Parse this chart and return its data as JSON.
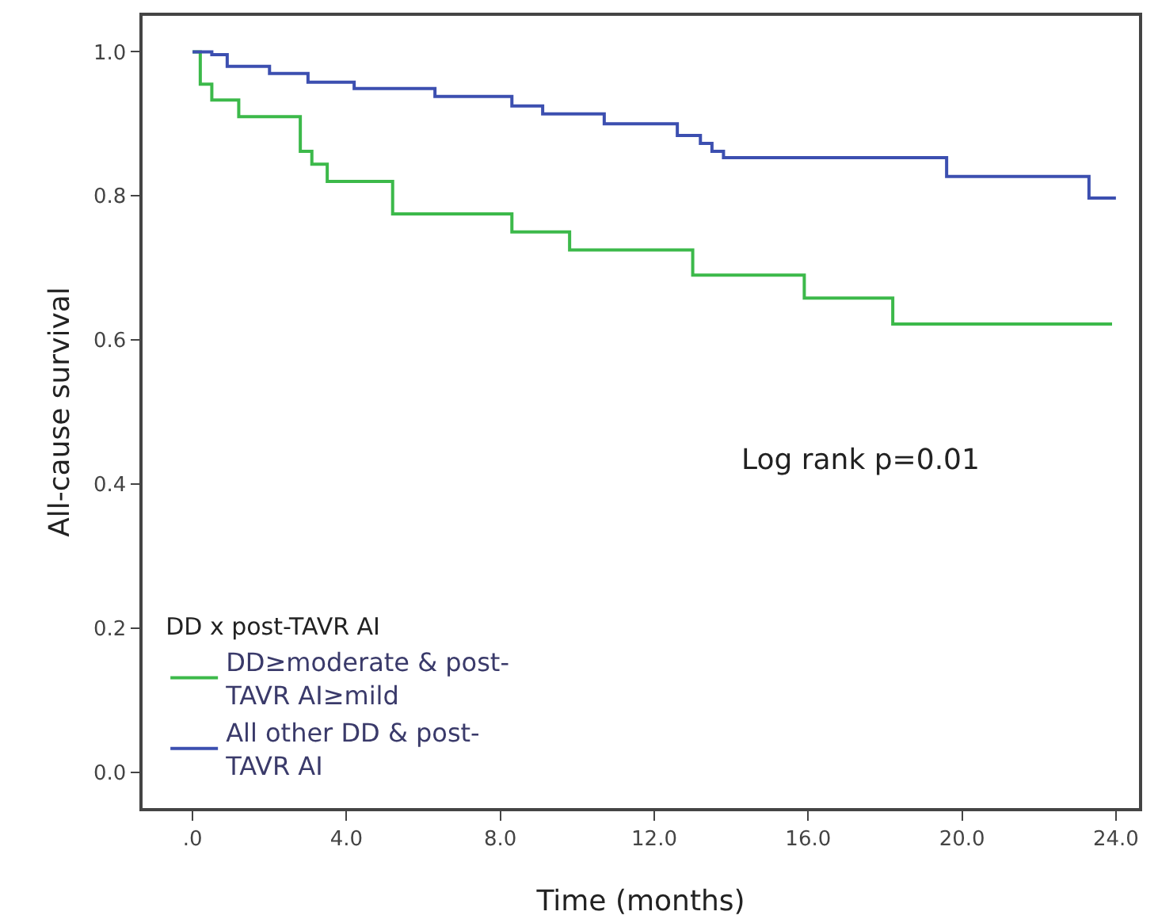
{
  "chart_data": {
    "type": "step",
    "xlabel": "Time (months)",
    "ylabel": "All-cause survival",
    "legend_title": "DD x post-TAVR AI",
    "legend": "bottom left",
    "grid": false,
    "xlim": [
      -1.3,
      24.6
    ],
    "ylim": [
      -0.05,
      1.05
    ],
    "xticks": [
      {
        "value": 0,
        "label": ".0"
      },
      {
        "value": 4,
        "label": "4.0"
      },
      {
        "value": 8,
        "label": "8.0"
      },
      {
        "value": 12,
        "label": "12.0"
      },
      {
        "value": 16,
        "label": "16.0"
      },
      {
        "value": 20,
        "label": "20.0"
      },
      {
        "value": 24,
        "label": "24.0"
      }
    ],
    "yticks": [
      {
        "value": 0,
        "label": "0.0"
      },
      {
        "value": 0.2,
        "label": "0.2"
      },
      {
        "value": 0.4,
        "label": "0.4"
      },
      {
        "value": 0.6,
        "label": "0.6"
      },
      {
        "value": 0.8,
        "label": "0.8"
      },
      {
        "value": 1,
        "label": "1.0"
      }
    ],
    "annotations": [
      "Log rank p=0.01"
    ],
    "series": [
      {
        "name": "DD≥moderate & post-TAVR AI≥mild",
        "color": "#3cb94a",
        "x": [
          0,
          0.2,
          0.5,
          1.2,
          2.8,
          3.1,
          3.5,
          5.2,
          8.3,
          9.8,
          13.0,
          15.9,
          18.2,
          23.9
        ],
        "values": [
          1.0,
          0.955,
          0.933,
          0.91,
          0.862,
          0.844,
          0.82,
          0.775,
          0.75,
          0.725,
          0.69,
          0.658,
          0.622,
          0.622
        ]
      },
      {
        "name": "All other DD & post-TAVR AI",
        "color": "#3c4fb0",
        "x": [
          0,
          0.5,
          0.9,
          2.0,
          3.0,
          4.2,
          6.3,
          8.3,
          9.1,
          10.7,
          12.6,
          13.2,
          13.5,
          13.8,
          19.6,
          23.3,
          24.0
        ],
        "values": [
          1.0,
          0.996,
          0.98,
          0.97,
          0.958,
          0.949,
          0.938,
          0.925,
          0.914,
          0.9,
          0.884,
          0.873,
          0.862,
          0.853,
          0.827,
          0.797,
          0.797
        ]
      }
    ]
  }
}
